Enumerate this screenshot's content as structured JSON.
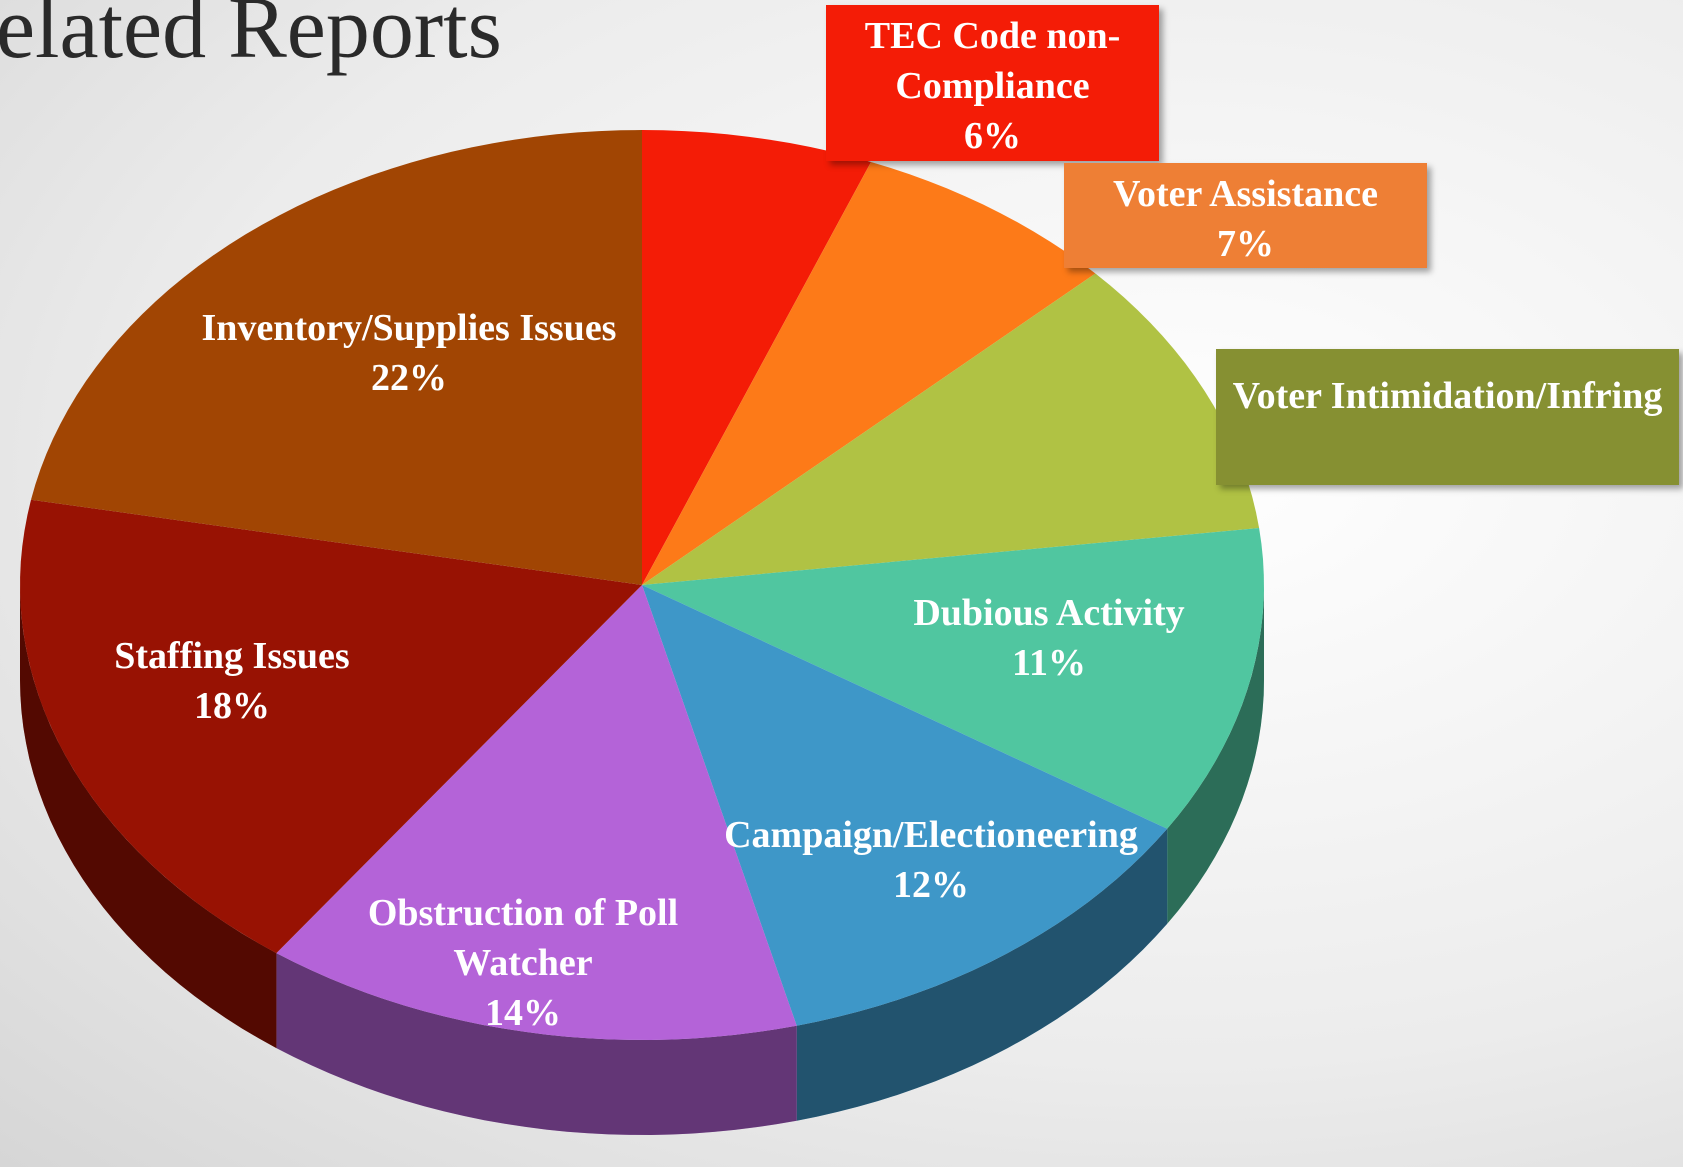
{
  "chart_data": {
    "type": "pie",
    "title": "elated Reports",
    "categories": [
      "TEC Code non-Compliance",
      "Voter Assistance",
      "Voter Intimidation/Infring",
      "Dubious Activity",
      "Campaign/Electioneering",
      "Obstruction of Poll Watcher",
      "Staffing Issues",
      "Inventory/Supplies Issues"
    ],
    "values": [
      6,
      7,
      10,
      11,
      12,
      14,
      18,
      22
    ],
    "value_labels": [
      "6%",
      "7%",
      null,
      "11%",
      "12%",
      "14%",
      "18%",
      "22%"
    ],
    "colors": [
      "#f41c06",
      "#fd7a18",
      "#b0c244",
      "#50c6a0",
      "#3e97c8",
      "#b463d8",
      "#981203",
      "#a14503"
    ]
  }
}
